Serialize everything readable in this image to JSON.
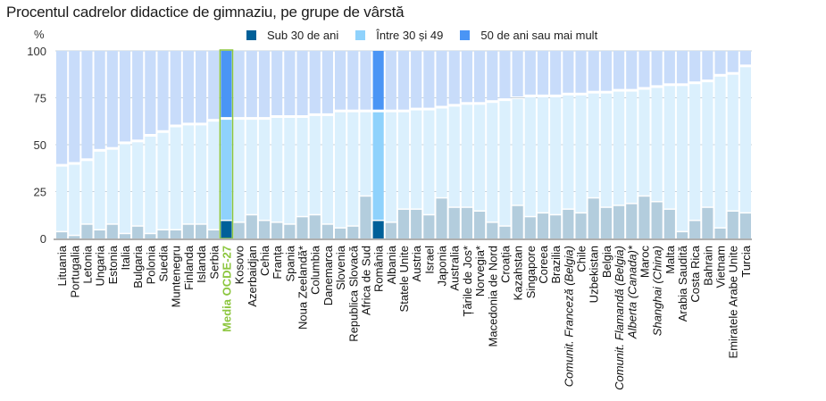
{
  "chart_data": {
    "type": "bar",
    "stacked": true,
    "title": "Procentul cadrelor didactice de gimnaziu, pe grupe de vârstă",
    "ylabel": "%",
    "xlabel": "",
    "ylim": [
      0,
      100
    ],
    "yticks": [
      0,
      25,
      50,
      75,
      100
    ],
    "grid": true,
    "legend_position": "top",
    "legend": [
      {
        "name": "Sub 30 de ani",
        "color": "#006099"
      },
      {
        "name": "Între 30 și 49",
        "color": "#8fd2fc"
      },
      {
        "name": "50 de ani sau mai mult",
        "color": "#4a95f5"
      }
    ],
    "colors": {
      "under30": "#b3cddd",
      "between30_49": "#dbf0fd",
      "over50": "#c8dcfa",
      "highlight_under30": "#006099",
      "highlight_30_49": "#8fd2fc",
      "highlight_over50": "#4a95f5",
      "oecd_outline": "#8cc63f",
      "grid": "#c4d0da",
      "axis": "#b0b0b0"
    },
    "categories": [
      {
        "name": "Lituania"
      },
      {
        "name": "Portugalia"
      },
      {
        "name": "Letonia"
      },
      {
        "name": "Ungaria"
      },
      {
        "name": "Estonia"
      },
      {
        "name": "Italia"
      },
      {
        "name": "Bulgaria"
      },
      {
        "name": "Polonia"
      },
      {
        "name": "Suedia"
      },
      {
        "name": "Muntenegru"
      },
      {
        "name": "Finlanda"
      },
      {
        "name": "Islanda"
      },
      {
        "name": "Serbia"
      },
      {
        "name": "Media OCDE-27",
        "oecd": true
      },
      {
        "name": "Kosovo"
      },
      {
        "name": "Azerbaidjan"
      },
      {
        "name": "Cehia"
      },
      {
        "name": "Franța"
      },
      {
        "name": "Spania"
      },
      {
        "name": "Noua Zeelandă*"
      },
      {
        "name": "Columbia"
      },
      {
        "name": "Danemarca"
      },
      {
        "name": "Slovenia"
      },
      {
        "name": "Republica Slovacă"
      },
      {
        "name": "Africa de Sud"
      },
      {
        "name": "România",
        "highlight": true
      },
      {
        "name": "Albania"
      },
      {
        "name": "Statele Unite"
      },
      {
        "name": "Austria"
      },
      {
        "name": "Israel"
      },
      {
        "name": "Japonia"
      },
      {
        "name": "Australia"
      },
      {
        "name": "Țările de Jos*"
      },
      {
        "name": "Norvegia*"
      },
      {
        "name": "Macedonia de Nord"
      },
      {
        "name": "Croația"
      },
      {
        "name": "Kazahstan"
      },
      {
        "name": "Singapore"
      },
      {
        "name": "Coreea"
      },
      {
        "name": "Brazilia"
      },
      {
        "name": "Comunit. Franceză (Belgia)",
        "italic": true
      },
      {
        "name": "Chile"
      },
      {
        "name": "Uzbekistan"
      },
      {
        "name": "Belgia"
      },
      {
        "name": "Comunit. Flamandă (Belgia)",
        "italic": true
      },
      {
        "name": "Alberta (Canada)*",
        "italic": true
      },
      {
        "name": "Maroc"
      },
      {
        "name": "Shanghai (China)",
        "italic": true
      },
      {
        "name": "Malta"
      },
      {
        "name": "Arabia Saudită"
      },
      {
        "name": "Costa Rica"
      },
      {
        "name": "Bahrain"
      },
      {
        "name": "Vietnam"
      },
      {
        "name": "Emiratele Arabe Unite"
      },
      {
        "name": "Turcia"
      }
    ],
    "series": [
      {
        "name": "Sub 30 de ani",
        "values": [
          4,
          2,
          8,
          5,
          8,
          3,
          7,
          3,
          5,
          5,
          8,
          8,
          5,
          10,
          9,
          13,
          10,
          9,
          8,
          12,
          13,
          8,
          6,
          7,
          23,
          10,
          9,
          16,
          16,
          13,
          22,
          17,
          17,
          15,
          9,
          7,
          18,
          12,
          14,
          13,
          16,
          14,
          22,
          17,
          18,
          19,
          23,
          20,
          16,
          4,
          10,
          17,
          6,
          15,
          14
        ]
      },
      {
        "name": "Între 30 și 49",
        "values": [
          35,
          38,
          34,
          42,
          40,
          48,
          45,
          52,
          52,
          55,
          53,
          53,
          58,
          54,
          55,
          51,
          54,
          56,
          57,
          53,
          53,
          58,
          62,
          61,
          45,
          58,
          59,
          52,
          53,
          56,
          48,
          54,
          55,
          57,
          64,
          67,
          57,
          64,
          62,
          63,
          61,
          63,
          56,
          61,
          61,
          60,
          57,
          61,
          66,
          78,
          73,
          67,
          81,
          73,
          78
        ]
      },
      {
        "name": "50 de ani sau mai mult",
        "values": [
          61,
          60,
          58,
          53,
          52,
          49,
          48,
          45,
          43,
          40,
          39,
          39,
          37,
          36,
          36,
          36,
          36,
          35,
          35,
          35,
          34,
          34,
          32,
          32,
          32,
          32,
          32,
          32,
          31,
          31,
          30,
          29,
          28,
          28,
          27,
          26,
          25,
          24,
          24,
          24,
          23,
          23,
          22,
          22,
          21,
          21,
          20,
          19,
          18,
          18,
          17,
          16,
          13,
          12,
          8
        ]
      }
    ]
  }
}
